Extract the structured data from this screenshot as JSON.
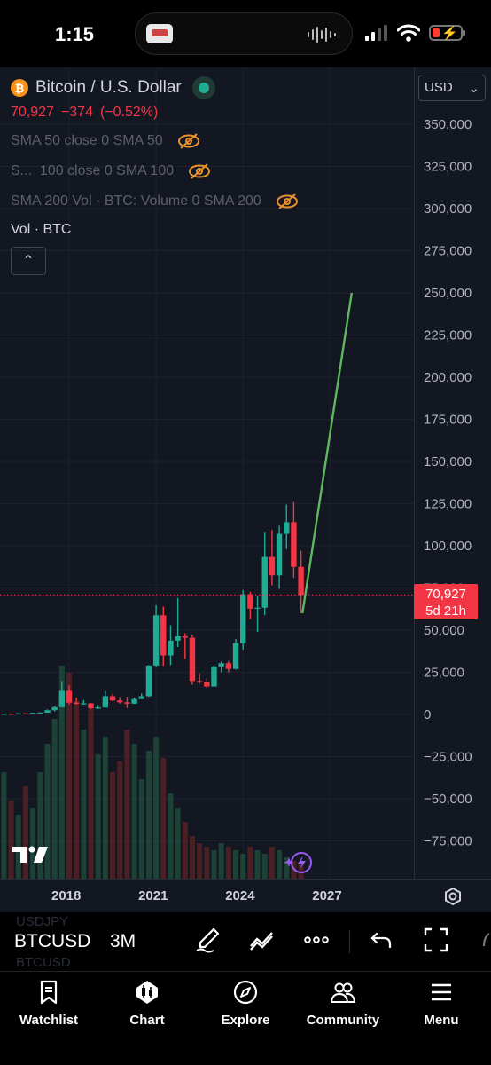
{
  "status_bar": {
    "time": "1:15"
  },
  "chart": {
    "symbol_title": "Bitcoin / U.S. Dollar",
    "btc_icon_glyph": "₿",
    "last_price": "70,927",
    "change": "−374",
    "change_pct": "(−0.52%)",
    "indicators": [
      {
        "label": "SMA 50 close 0 SMA 50"
      },
      {
        "label": "S...  100 close 0 SMA 100"
      },
      {
        "label": "SMA 200 Vol · BTC: Volume 0 SMA 200"
      }
    ],
    "volume_label": "Vol · BTC",
    "collapse_glyph": "⌃",
    "currency": "USD",
    "currency_caret": "⌄",
    "price_label_value": "70,927",
    "price_label_countdown": "5d 21h",
    "colors": {
      "up": "#22ab94",
      "down": "#f23645",
      "projection": "#5fb85f",
      "background": "#131722",
      "grid": "#1e222d"
    }
  },
  "chart_data": {
    "type": "candlestick",
    "interval": "3M",
    "y_axis_ticks": [
      "350,000",
      "325,000",
      "300,000",
      "275,000",
      "250,000",
      "225,000",
      "200,000",
      "175,000",
      "150,000",
      "125,000",
      "100,000",
      "75,000",
      "50,000",
      "25,000",
      "0",
      "−25,000",
      "−50,000",
      "−75,000"
    ],
    "ylim": [
      -97000,
      373000
    ],
    "x_axis_ticks": [
      "2018",
      "2021",
      "2024",
      "2027"
    ],
    "x_tick_years": [
      2018,
      2021,
      2024,
      2027
    ],
    "last_price": 70927,
    "candles": [
      {
        "t": 2015.75,
        "o": 240,
        "h": 470,
        "l": 220,
        "c": 430
      },
      {
        "t": 2016.0,
        "o": 430,
        "h": 470,
        "l": 360,
        "c": 415
      },
      {
        "t": 2016.25,
        "o": 415,
        "h": 780,
        "l": 410,
        "c": 670
      },
      {
        "t": 2016.5,
        "o": 670,
        "h": 680,
        "l": 530,
        "c": 600
      },
      {
        "t": 2016.75,
        "o": 600,
        "h": 980,
        "l": 590,
        "c": 960
      },
      {
        "t": 2017.0,
        "o": 960,
        "h": 1300,
        "l": 750,
        "c": 1070
      },
      {
        "t": 2017.25,
        "o": 1070,
        "h": 3000,
        "l": 1070,
        "c": 2500
      },
      {
        "t": 2017.5,
        "o": 2500,
        "h": 5000,
        "l": 1800,
        "c": 4300
      },
      {
        "t": 2017.75,
        "o": 4300,
        "h": 19800,
        "l": 4100,
        "c": 14000
      },
      {
        "t": 2018.0,
        "o": 14000,
        "h": 17200,
        "l": 6000,
        "c": 7000
      },
      {
        "t": 2018.25,
        "o": 7000,
        "h": 9900,
        "l": 5800,
        "c": 6400
      },
      {
        "t": 2018.5,
        "o": 6400,
        "h": 8500,
        "l": 5900,
        "c": 6600
      },
      {
        "t": 2018.75,
        "o": 6600,
        "h": 6800,
        "l": 3200,
        "c": 3700
      },
      {
        "t": 2019.0,
        "o": 3700,
        "h": 5500,
        "l": 3300,
        "c": 4100
      },
      {
        "t": 2019.25,
        "o": 4100,
        "h": 13800,
        "l": 4100,
        "c": 10800
      },
      {
        "t": 2019.5,
        "o": 10800,
        "h": 12300,
        "l": 7800,
        "c": 8300
      },
      {
        "t": 2019.75,
        "o": 8300,
        "h": 10300,
        "l": 6500,
        "c": 7200
      },
      {
        "t": 2020.0,
        "o": 7200,
        "h": 10500,
        "l": 3800,
        "c": 6400
      },
      {
        "t": 2020.25,
        "o": 6400,
        "h": 10000,
        "l": 6200,
        "c": 9100
      },
      {
        "t": 2020.5,
        "o": 9100,
        "h": 12400,
        "l": 9000,
        "c": 10800
      },
      {
        "t": 2020.75,
        "o": 10800,
        "h": 29300,
        "l": 10400,
        "c": 29000
      },
      {
        "t": 2021.0,
        "o": 29000,
        "h": 64800,
        "l": 28000,
        "c": 58800
      },
      {
        "t": 2021.25,
        "o": 58800,
        "h": 64000,
        "l": 28800,
        "c": 35000
      },
      {
        "t": 2021.5,
        "o": 35000,
        "h": 52900,
        "l": 29300,
        "c": 43800
      },
      {
        "t": 2021.75,
        "o": 43800,
        "h": 69000,
        "l": 40000,
        "c": 46300
      },
      {
        "t": 2022.0,
        "o": 46300,
        "h": 48200,
        "l": 32900,
        "c": 45500
      },
      {
        "t": 2022.25,
        "o": 45500,
        "h": 47400,
        "l": 17600,
        "c": 19800
      },
      {
        "t": 2022.5,
        "o": 19800,
        "h": 24600,
        "l": 18200,
        "c": 19400
      },
      {
        "t": 2022.75,
        "o": 19400,
        "h": 21500,
        "l": 15500,
        "c": 16500
      },
      {
        "t": 2023.0,
        "o": 16500,
        "h": 29200,
        "l": 16500,
        "c": 28500
      },
      {
        "t": 2023.25,
        "o": 28500,
        "h": 31400,
        "l": 25000,
        "c": 30400
      },
      {
        "t": 2023.5,
        "o": 30400,
        "h": 31800,
        "l": 24900,
        "c": 27000
      },
      {
        "t": 2023.75,
        "o": 27000,
        "h": 44700,
        "l": 26600,
        "c": 42300
      },
      {
        "t": 2024.0,
        "o": 42300,
        "h": 73800,
        "l": 38500,
        "c": 71300
      },
      {
        "t": 2024.25,
        "o": 71300,
        "h": 72700,
        "l": 56500,
        "c": 62700
      },
      {
        "t": 2024.5,
        "o": 62700,
        "h": 70000,
        "l": 49000,
        "c": 63300
      },
      {
        "t": 2024.75,
        "o": 63300,
        "h": 108300,
        "l": 58900,
        "c": 93400
      },
      {
        "t": 2025.0,
        "o": 93400,
        "h": 109400,
        "l": 76600,
        "c": 82500
      },
      {
        "t": 2025.25,
        "o": 82500,
        "h": 111900,
        "l": 74500,
        "c": 107100
      },
      {
        "t": 2025.5,
        "o": 107100,
        "h": 124500,
        "l": 98000,
        "c": 114000
      },
      {
        "t": 2025.75,
        "o": 114000,
        "h": 126000,
        "l": 81000,
        "c": 87500
      },
      {
        "t": 2026.0,
        "o": 87500,
        "h": 97000,
        "l": 60000,
        "c": 70927
      }
    ],
    "projection_line": {
      "from": {
        "t": 2026.05,
        "y": 60000
      },
      "to": {
        "t": 2027.75,
        "y": 250000
      }
    },
    "volume_bars": [
      0.3,
      0.22,
      0.18,
      0.26,
      0.2,
      0.3,
      0.38,
      0.45,
      0.6,
      0.58,
      0.5,
      0.42,
      0.48,
      0.35,
      0.4,
      0.3,
      0.33,
      0.42,
      0.38,
      0.28,
      0.36,
      0.4,
      0.34,
      0.24,
      0.2,
      0.16,
      0.12,
      0.1,
      0.09,
      0.08,
      0.1,
      0.09,
      0.08,
      0.07,
      0.09,
      0.08,
      0.07,
      0.09,
      0.08,
      0.06,
      0.05,
      0.04
    ]
  },
  "time_axis": {
    "labels": [
      "2018",
      "2021",
      "2024",
      "2027"
    ]
  },
  "toolbar": {
    "ghost_above": "USDJPY",
    "symbol": "BTCUSD",
    "ghost_below": "BTCUSD",
    "interval": "3M"
  },
  "tabs": [
    {
      "label": "Watchlist",
      "icon": "bookmark-icon"
    },
    {
      "label": "Chart",
      "icon": "candle-chart-icon"
    },
    {
      "label": "Explore",
      "icon": "compass-icon"
    },
    {
      "label": "Community",
      "icon": "people-icon"
    },
    {
      "label": "Menu",
      "icon": "hamburger-icon"
    }
  ]
}
